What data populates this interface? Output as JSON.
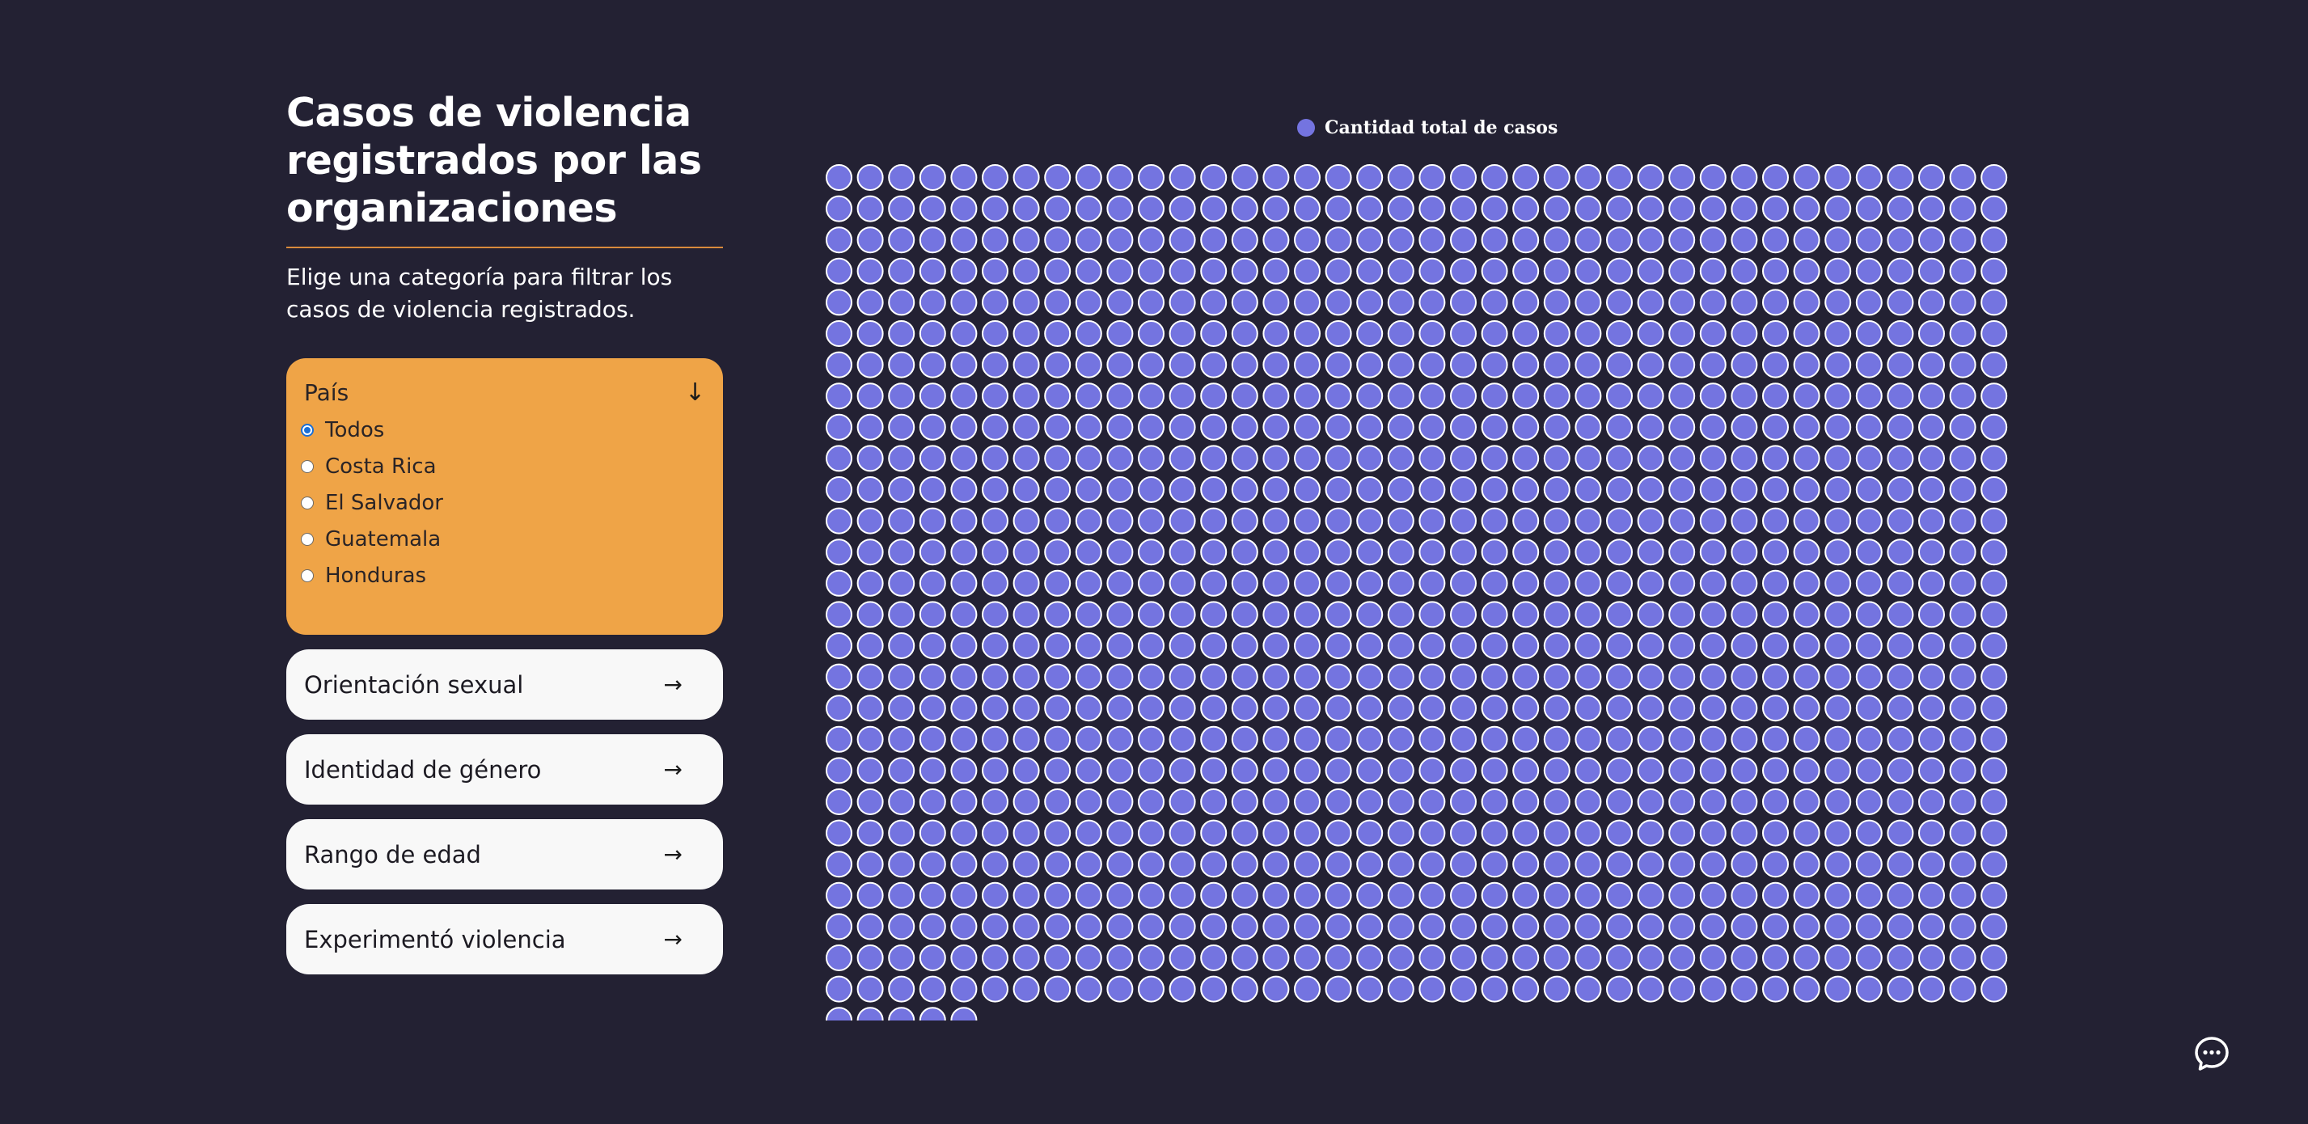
{
  "sidebar": {
    "title": "Casos de violencia registrados por las organizaciones",
    "subtitle": "Elige una categoría para filtrar los casos de violencia registrados.",
    "active_filter": {
      "label": "País",
      "expand_icon": "arrow-down-icon",
      "options": [
        {
          "label": "Todos",
          "checked": true
        },
        {
          "label": "Costa Rica",
          "checked": false
        },
        {
          "label": "El Salvador",
          "checked": false
        },
        {
          "label": "Guatemala",
          "checked": false
        },
        {
          "label": "Honduras",
          "checked": false
        }
      ]
    },
    "filters": [
      {
        "label": "Orientación sexual",
        "icon": "arrow-right-icon"
      },
      {
        "label": "Identidad de género",
        "icon": "arrow-right-icon"
      },
      {
        "label": "Rango de edad",
        "icon": "arrow-right-icon"
      },
      {
        "label": "Experimentó violencia",
        "icon": "arrow-right-icon"
      }
    ]
  },
  "chart_data": {
    "type": "waffle",
    "series": [
      {
        "name": "Cantidad total de casos",
        "color": "#7474e0",
        "count": 1031
      }
    ],
    "columns": 38,
    "grid": false
  },
  "colors": {
    "background": "#232133",
    "accent": "#efa447",
    "dot": "#7474e0",
    "dot_border": "#ffffff",
    "divider": "#d98a3c"
  },
  "chat": {
    "icon": "chat-bubble-icon"
  }
}
